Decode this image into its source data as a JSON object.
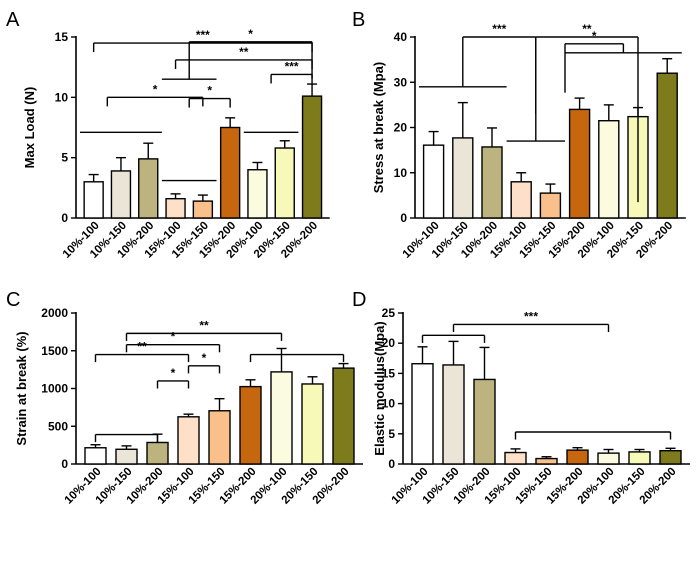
{
  "chart_data": [
    {
      "panel": "A",
      "type": "bar",
      "ylabel": "Max Load (N)",
      "xlabel": "",
      "ylim": [
        0,
        15
      ],
      "yticks": [
        0,
        5,
        10,
        15
      ],
      "categories": [
        "10%-100",
        "10%-150",
        "10%-200",
        "15%-100",
        "15%-150",
        "15%-200",
        "20%-100",
        "20%-150",
        "20%-200"
      ],
      "values": [
        3.0,
        3.9,
        4.9,
        1.6,
        1.4,
        7.5,
        4.0,
        5.8,
        10.1
      ],
      "errors": [
        0.6,
        1.1,
        1.3,
        0.4,
        0.5,
        0.8,
        0.6,
        0.6,
        1.0
      ],
      "significance": [
        {
          "label": "***",
          "type": "direct",
          "a": 0,
          "b": 8,
          "level": 14.5
        },
        {
          "label": "**",
          "type": "direct",
          "a": 3,
          "b": 8,
          "level": 13.1
        },
        {
          "label": "*",
          "type": "groupbar",
          "bars": [
            3,
            4
          ],
          "to": 8,
          "level": 11.5,
          "drop": 3.1,
          "half": 0.5
        },
        {
          "label": "*",
          "type": "direct",
          "a": 0.5,
          "b": 4,
          "level": 10.0
        },
        {
          "label": "*",
          "type": "direct",
          "a": 3.5,
          "b": 5,
          "level": 9.9
        },
        {
          "label": "***",
          "type": "direct",
          "a": 6.5,
          "b": 8,
          "level": 11.9
        },
        {
          "label": "",
          "type": "groupbar",
          "bars": [
            0,
            1,
            2
          ],
          "level": 7.1
        },
        {
          "label": "",
          "type": "groupbar",
          "bars": [
            3,
            4
          ],
          "level": 3.1
        },
        {
          "label": "",
          "type": "groupbar",
          "bars": [
            6,
            7
          ],
          "level": 7.1
        }
      ]
    },
    {
      "panel": "B",
      "type": "bar",
      "ylabel": "Stress at break (Mpa)",
      "xlabel": "",
      "ylim": [
        0,
        40
      ],
      "yticks": [
        0,
        10,
        20,
        30,
        40
      ],
      "categories": [
        "10%-100",
        "10%-150",
        "10%-200",
        "15%-100",
        "15%-150",
        "15%-200",
        "20%-100",
        "20%-150",
        "20%-200"
      ],
      "values": [
        16.1,
        17.7,
        15.7,
        8.0,
        5.5,
        24.0,
        21.5,
        22.4,
        32.0
      ],
      "errors": [
        3.0,
        7.8,
        4.2,
        2.0,
        2.0,
        2.5,
        3.5,
        2.0,
        3.2
      ],
      "significance": [
        {
          "label": "***",
          "type": "groupbar",
          "bars": [
            0,
            1,
            2
          ],
          "level": 29.0,
          "drop": 6.0,
          "to": 3.5,
          "tolevel": 40.0,
          "todrop": 23.0,
          "half": 0.5
        },
        {
          "label": "**",
          "type": "groupbar",
          "bars": [
            3,
            4
          ],
          "level": 17.0,
          "to": 7,
          "tolevel": 40.0,
          "todrop": 3.5,
          "half": 0.5,
          "from": 3.5
        },
        {
          "label": "*",
          "type": "groupbar",
          "bars": [
            5,
            6,
            7,
            8
          ],
          "level": 36.5,
          "to": 4.5,
          "tolevel": 38.5,
          "half": 0.5
        }
      ]
    },
    {
      "panel": "C",
      "type": "bar",
      "ylabel": "Strain at break (%)",
      "xlabel": "",
      "ylim": [
        0,
        2000
      ],
      "yticks": [
        0,
        500,
        1000,
        1500,
        2000
      ],
      "categories": [
        "10%-100",
        "10%-150",
        "10%-200",
        "15%-100",
        "15%-150",
        "15%-200",
        "20%-100",
        "20%-150",
        "20%-200"
      ],
      "values": [
        215,
        195,
        285,
        625,
        705,
        1025,
        1220,
        1060,
        1270
      ],
      "errors": [
        40,
        45,
        110,
        35,
        160,
        90,
        310,
        95,
        60
      ],
      "significance": [
        {
          "label": "**",
          "from": 1,
          "to": 6,
          "level": 1730
        },
        {
          "label": "*",
          "from": 1,
          "to": 4,
          "level": 1580
        },
        {
          "label": "**",
          "from": 0,
          "to": 3,
          "level": 1450
        },
        {
          "label": "*",
          "from": 3,
          "to": 4,
          "level": 1300
        },
        {
          "label": "*",
          "from": 2,
          "to": 3,
          "level": 1100
        },
        {
          "label": "",
          "from": 5,
          "to": 8,
          "level": 1450
        },
        {
          "label": "",
          "from": 0,
          "to": 2,
          "level": 390
        }
      ]
    },
    {
      "panel": "D",
      "type": "bar",
      "ylabel": "Elastic modulus(Mpa)",
      "xlabel": "",
      "ylim": [
        0,
        25
      ],
      "yticks": [
        0,
        5,
        10,
        15,
        20,
        25
      ],
      "categories": [
        "10%-100",
        "10%-150",
        "10%-200",
        "15%-100",
        "15%-150",
        "15%-200",
        "20%-100",
        "20%-150",
        "20%-200"
      ],
      "values": [
        16.6,
        16.4,
        14.0,
        1.9,
        0.9,
        2.3,
        1.8,
        2.0,
        2.2
      ],
      "errors": [
        2.8,
        3.9,
        5.3,
        0.6,
        0.3,
        0.4,
        0.6,
        0.4,
        0.4
      ],
      "significance": [
        {
          "label": "***",
          "from": 1,
          "to": 6,
          "level": 23.1
        },
        {
          "label": "",
          "from": 0,
          "to": 2,
          "level": 21.3
        },
        {
          "label": "",
          "from": 3,
          "to": 8,
          "level": 5.3
        }
      ]
    }
  ],
  "colors": {
    "fills": [
      "#ffffff",
      "#eae5d6",
      "#bdb37f",
      "#fde0c7",
      "#f9c08c",
      "#c6660f",
      "#fbfbe0",
      "#f7f9b8",
      "#7d7b1b"
    ],
    "stroke": "#000000"
  }
}
